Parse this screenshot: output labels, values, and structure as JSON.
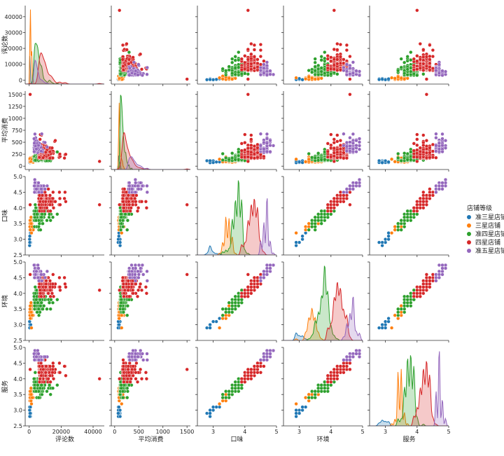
{
  "chart_data": {
    "type": "scatter",
    "subtype": "pairplot",
    "variables": [
      "评论数",
      "平均消费",
      "口味",
      "环境",
      "服务"
    ],
    "axis_ticks": {
      "评论数": {
        "lim": [
          -2500,
          47000
        ],
        "ticks": [
          0,
          20000,
          40000
        ],
        "tick_labels": [
          "0",
          "20000",
          "40000"
        ],
        "row_ticks": [
          0,
          10000,
          20000,
          30000,
          40000
        ],
        "row_tick_labels": [
          "0",
          "10000",
          "20000",
          "30000",
          "40000"
        ]
      },
      "平均消费": {
        "lim": [
          -70,
          1570
        ],
        "ticks": [
          0,
          500,
          1000,
          1500
        ],
        "tick_labels": [
          "0",
          "500",
          "1000",
          "1500"
        ],
        "row_ticks": [
          0,
          250,
          500,
          750,
          1000,
          1250,
          1500
        ],
        "row_tick_labels": [
          "0",
          "250",
          "500",
          "750",
          "1000",
          "1250",
          "1500"
        ]
      },
      "口味": {
        "lim": [
          2.5,
          5.0
        ],
        "ticks": [
          3,
          4,
          5
        ],
        "tick_labels": [
          "3",
          "4",
          "5"
        ],
        "row_ticks": [
          2.5,
          3.0,
          3.5,
          4.0,
          4.5,
          5.0
        ],
        "row_tick_labels": [
          "2.5",
          "3.0",
          "3.5",
          "4.0",
          "4.5",
          "5.0"
        ]
      },
      "环境": {
        "lim": [
          2.5,
          5.0
        ],
        "ticks": [
          3,
          4,
          5
        ],
        "tick_labels": [
          "3",
          "4",
          "5"
        ],
        "row_ticks": [
          2.5,
          3.0,
          3.5,
          4.0,
          4.5,
          5.0
        ],
        "row_tick_labels": [
          "2.5",
          "3.0",
          "3.5",
          "4.0",
          "4.5",
          "5.0"
        ]
      },
      "服务": {
        "lim": [
          2.5,
          5.0
        ],
        "ticks": [
          3,
          4,
          5
        ],
        "tick_labels": [
          "3",
          "4",
          "5"
        ],
        "row_ticks": [
          2.5,
          3.0,
          3.5,
          4.0,
          4.5,
          5.0
        ],
        "row_tick_labels": [
          "2.5",
          "3.0",
          "3.5",
          "4.0",
          "4.5",
          "5.0"
        ]
      }
    },
    "hue_title": "店铺等级",
    "series": [
      {
        "name": "准三星店铺",
        "color": "#1f77b4",
        "center": {
          "评论数": 200,
          "平均消费": 70,
          "口味": 2.95,
          "环境": 3.0,
          "服务": 3.0
        },
        "spread": {
          "评论数": 400,
          "平均消费": 40,
          "口味": 0.15,
          "环境": 0.15,
          "服务": 0.15
        },
        "count": 12
      },
      {
        "name": "三星店铺",
        "color": "#ff7f0e",
        "center": {
          "评论数": 400,
          "平均消费": 80,
          "口味": 3.45,
          "环境": 3.4,
          "服务": 3.45
        },
        "spread": {
          "评论数": 900,
          "平均消费": 50,
          "口味": 0.12,
          "环境": 0.15,
          "服务": 0.12
        },
        "count": 60
      },
      {
        "name": "准四星店铺",
        "color": "#2ca02c",
        "center": {
          "评论数": 3000,
          "平均消费": 110,
          "口味": 3.75,
          "环境": 3.75,
          "服务": 3.75
        },
        "spread": {
          "评论数": 5000,
          "平均消费": 90,
          "口味": 0.18,
          "环境": 0.2,
          "服务": 0.18
        },
        "count": 150
      },
      {
        "name": "四星店铺",
        "color": "#d62728",
        "center": {
          "评论数": 6000,
          "平均消费": 160,
          "口味": 4.25,
          "环境": 4.25,
          "服务": 4.25
        },
        "spread": {
          "评论数": 7000,
          "平均消费": 150,
          "口味": 0.17,
          "环境": 0.2,
          "服务": 0.17
        },
        "count": 150
      },
      {
        "name": "准五星店铺",
        "color": "#9467bd",
        "center": {
          "评论数": 3000,
          "平均消费": 280,
          "口味": 4.65,
          "环境": 4.65,
          "服务": 4.7
        },
        "spread": {
          "评论数": 4000,
          "平均消费": 200,
          "口味": 0.12,
          "环境": 0.15,
          "服务": 0.12
        },
        "count": 60
      }
    ],
    "outliers": [
      {
        "series": "四星店铺",
        "评论数": 44000,
        "平均消费": 100,
        "口味": 4.1,
        "环境": 4.1,
        "服务": 4.0
      },
      {
        "series": "四星店铺",
        "评论数": 600,
        "平均消费": 1500,
        "口味": 4.1,
        "环境": 4.6,
        "服务": 4.3
      }
    ],
    "diagonal": "kde"
  }
}
